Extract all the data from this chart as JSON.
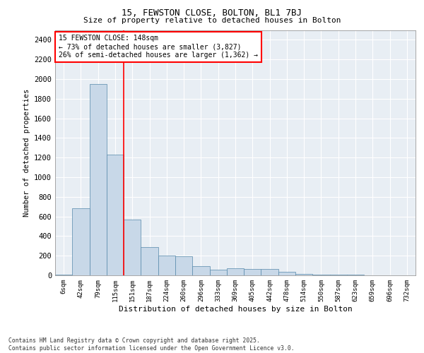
{
  "title1": "15, FEWSTON CLOSE, BOLTON, BL1 7BJ",
  "title2": "Size of property relative to detached houses in Bolton",
  "xlabel": "Distribution of detached houses by size in Bolton",
  "ylabel": "Number of detached properties",
  "bar_color": "#c8d8e8",
  "bar_edge_color": "#5588aa",
  "bg_color": "#e8eef4",
  "grid_color": "#ffffff",
  "vline_x": 3.5,
  "vline_color": "red",
  "annotation_text": "15 FEWSTON CLOSE: 148sqm\n← 73% of detached houses are smaller (3,827)\n26% of semi-detached houses are larger (1,362) →",
  "footnote": "Contains HM Land Registry data © Crown copyright and database right 2025.\nContains public sector information licensed under the Open Government Licence v3.0.",
  "categories": [
    "6sqm",
    "42sqm",
    "79sqm",
    "115sqm",
    "151sqm",
    "187sqm",
    "224sqm",
    "260sqm",
    "296sqm",
    "333sqm",
    "369sqm",
    "405sqm",
    "442sqm",
    "478sqm",
    "514sqm",
    "550sqm",
    "587sqm",
    "623sqm",
    "659sqm",
    "696sqm",
    "732sqm"
  ],
  "values": [
    8,
    680,
    1950,
    1230,
    570,
    285,
    200,
    195,
    95,
    55,
    75,
    65,
    65,
    35,
    12,
    8,
    4,
    4,
    2,
    2,
    2
  ],
  "ylim": [
    0,
    2500
  ],
  "yticks": [
    0,
    200,
    400,
    600,
    800,
    1000,
    1200,
    1400,
    1600,
    1800,
    2000,
    2200,
    2400
  ]
}
